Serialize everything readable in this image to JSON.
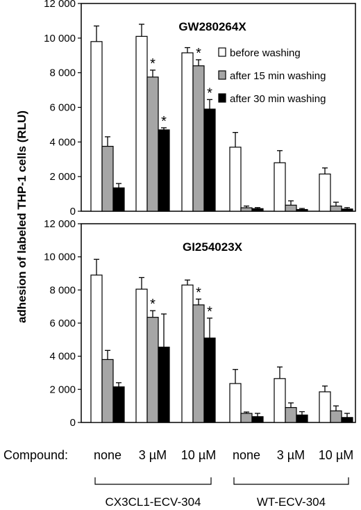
{
  "ylabel": "adhesion of labeled THP-1 cells (RLU)",
  "legend": {
    "items": [
      {
        "label": "before washing",
        "fill": "#ffffff"
      },
      {
        "label": "after 15 min washing",
        "fill": "#a6a6a6"
      },
      {
        "label": "after 30 min washing",
        "fill": "#000000"
      }
    ],
    "placement": "top-right of top panel"
  },
  "compound_label": "Compound:",
  "categories": [
    "none",
    "3 µM",
    "10 µM",
    "none",
    "3 µM",
    "10 µM"
  ],
  "groups": [
    {
      "label": "CX3CL1-ECV-304",
      "categories": [
        0,
        1,
        2
      ]
    },
    {
      "label": "WT-ECV-304",
      "categories": [
        3,
        4,
        5
      ]
    }
  ],
  "chart_data": [
    {
      "type": "bar",
      "title": "GW280264X",
      "categories": [
        "none",
        "3 µM",
        "10 µM",
        "none",
        "3 µM",
        "10 µM"
      ],
      "ylim": [
        0,
        12000
      ],
      "yticks": [
        0,
        2000,
        4000,
        6000,
        8000,
        10000,
        12000
      ],
      "ytick_labels": [
        "0",
        "2 000",
        "4 000",
        "6 000",
        "8 000",
        "10 000",
        "12 000"
      ],
      "grid": false,
      "series": [
        {
          "name": "before washing",
          "values": [
            9800,
            10100,
            9150,
            3700,
            2800,
            2150
          ],
          "errors": [
            900,
            700,
            300,
            850,
            700,
            350
          ],
          "stars": [
            false,
            false,
            false,
            false,
            false,
            false
          ]
        },
        {
          "name": "after 15 min washing",
          "values": [
            3750,
            7750,
            8400,
            200,
            350,
            300
          ],
          "errors": [
            550,
            400,
            350,
            100,
            250,
            220
          ],
          "stars": [
            false,
            true,
            true,
            false,
            false,
            false
          ]
        },
        {
          "name": "after 30 min washing",
          "values": [
            1350,
            4700,
            5900,
            150,
            100,
            130
          ],
          "errors": [
            250,
            120,
            550,
            60,
            60,
            80
          ],
          "stars": [
            false,
            true,
            true,
            false,
            false,
            false
          ]
        }
      ]
    },
    {
      "type": "bar",
      "title": "GI254023X",
      "categories": [
        "none",
        "3 µM",
        "10 µM",
        "none",
        "3 µM",
        "10 µM"
      ],
      "ylim": [
        0,
        12000
      ],
      "yticks": [
        0,
        2000,
        4000,
        6000,
        8000,
        10000,
        12000
      ],
      "ytick_labels": [
        "0",
        "2 000",
        "4 000",
        "6 000",
        "8 000",
        "10 000",
        "12 000"
      ],
      "grid": false,
      "series": [
        {
          "name": "before washing",
          "values": [
            8900,
            8050,
            8300,
            2350,
            2650,
            1850
          ],
          "errors": [
            950,
            700,
            300,
            850,
            700,
            350
          ],
          "stars": [
            false,
            false,
            false,
            false,
            false,
            false
          ]
        },
        {
          "name": "after 15 min washing",
          "values": [
            3800,
            6350,
            7100,
            550,
            900,
            700
          ],
          "errors": [
            550,
            400,
            350,
            80,
            280,
            300
          ],
          "stars": [
            false,
            true,
            true,
            false,
            false,
            false
          ]
        },
        {
          "name": "after 30 min washing",
          "values": [
            2150,
            4550,
            5100,
            350,
            450,
            300
          ],
          "errors": [
            250,
            2000,
            1200,
            200,
            200,
            250
          ],
          "stars": [
            false,
            false,
            true,
            false,
            false,
            false
          ]
        }
      ]
    }
  ]
}
